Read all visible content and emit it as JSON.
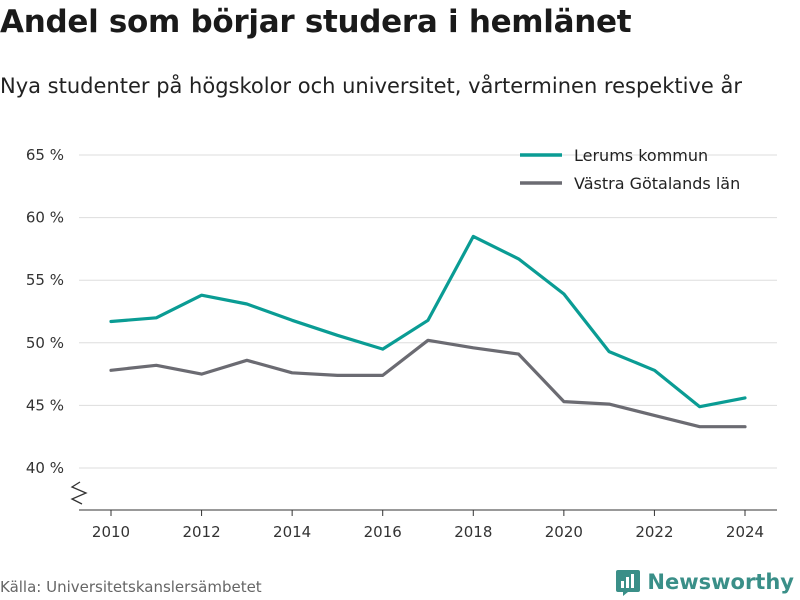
{
  "header": {
    "title": "Andel som börjar studera i hemlänet",
    "subtitle": "Nya studenter på högskolor och universitet, vårterminen respektive år"
  },
  "footer": {
    "source": "Källa: Universitetskanslersämbetet",
    "brand": "Newsworthy"
  },
  "colors": {
    "lerum": "#0a9c94",
    "vastra_gotaland": "#6b6b72",
    "brand": "#3a8f88",
    "grid": "#dddddd"
  },
  "chart_data": {
    "type": "line",
    "title": "Andel som börjar studera i hemlänet",
    "subtitle": "Nya studenter på högskolor och universitet, vårterminen respektive år",
    "x": [
      2010,
      2011,
      2012,
      2013,
      2014,
      2015,
      2016,
      2017,
      2018,
      2019,
      2020,
      2021,
      2022,
      2023,
      2024
    ],
    "x_ticks": [
      2010,
      2012,
      2014,
      2016,
      2018,
      2020,
      2022,
      2024
    ],
    "y_ticks": [
      40,
      45,
      50,
      55,
      60,
      65
    ],
    "y_tick_labels": [
      "40 %",
      "45 %",
      "50 %",
      "55 %",
      "60 %",
      "65 %"
    ],
    "ylim": [
      40,
      65
    ],
    "y_axis_break": true,
    "grid": true,
    "legend_position": "top-right",
    "series": [
      {
        "name": "Lerums kommun",
        "color": "#0a9c94",
        "values": [
          51.7,
          52.0,
          53.8,
          53.1,
          51.8,
          50.6,
          49.5,
          51.8,
          58.5,
          56.7,
          53.9,
          49.3,
          47.8,
          44.9,
          45.6
        ]
      },
      {
        "name": "Västra Götalands län",
        "color": "#6b6b72",
        "values": [
          47.8,
          48.2,
          47.5,
          48.6,
          47.6,
          47.4,
          47.4,
          50.2,
          49.6,
          49.1,
          45.3,
          45.1,
          44.2,
          43.3,
          43.3
        ]
      }
    ]
  }
}
